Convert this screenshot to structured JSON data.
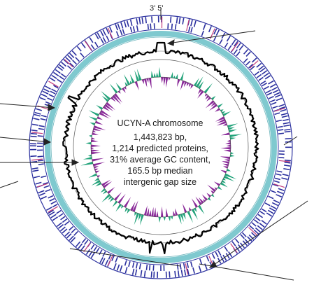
{
  "diagram": {
    "top_label": "3' 5'",
    "center_text": [
      "UCYN-A chromosome",
      "1,443,823 bp,",
      "1,214 predicted proteins,",
      "31% average GC content,",
      "165.5 bp median",
      "intergenic gap size"
    ],
    "colors": {
      "gene_ring": "#2a2f9e",
      "gene_ring_accent": "#c23b7a",
      "rna_ring": "#7fc9cf",
      "gc_skew_positive": "#22a37a",
      "gc_skew_negative": "#8a2a99",
      "gc_content": "#000000",
      "arrow": "#222222"
    }
  }
}
